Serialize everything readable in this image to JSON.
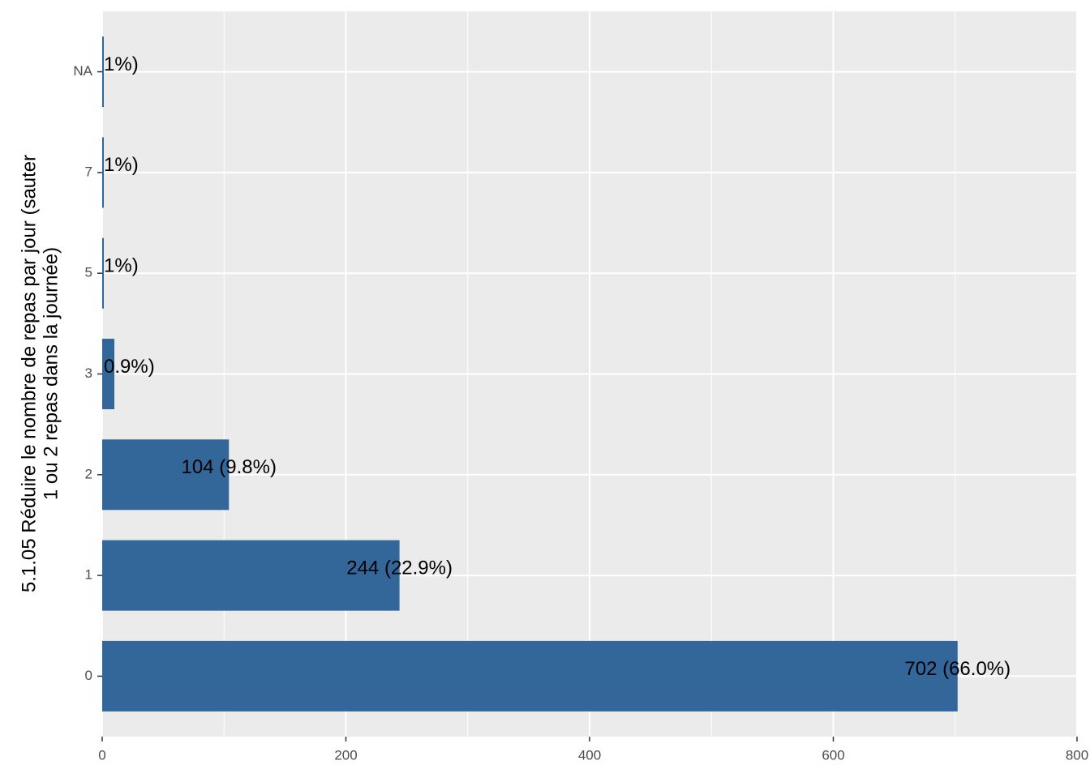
{
  "chart_data": {
    "type": "bar",
    "orientation": "horizontal",
    "y_label": [
      "5.1.05 Réduire le nombre de repas par jour (sauter",
      "1 ou 2 repas dans la journée)"
    ],
    "categories": [
      "0",
      "1",
      "2",
      "3",
      "5",
      "7",
      "NA"
    ],
    "values": [
      702,
      244,
      104,
      10,
      1,
      1,
      1
    ],
    "value_labels": [
      "702 (66.0%)",
      "244 (22.9%)",
      "104 (9.8%)",
      "0.9%)",
      "1%)",
      "1%)",
      "1%)"
    ],
    "color": "#336699",
    "xlim": [
      0,
      800
    ],
    "xticks": [
      0,
      200,
      400,
      600,
      800
    ],
    "grid": true
  }
}
